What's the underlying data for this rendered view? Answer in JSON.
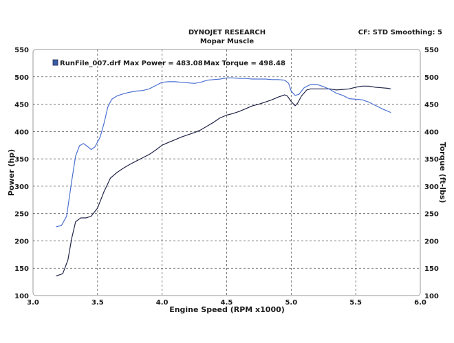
{
  "header": {
    "title": "DYNOJET RESEARCH",
    "subtitle": "Mopar Muscle",
    "settings": "CF: STD  Smoothing: 5"
  },
  "legend": {
    "run_text": "RunFile_007.drf Max Power = 483.08",
    "torque_text": "Max Torque = 498.48",
    "swatch_color": "#3a5ea8"
  },
  "chart_data": {
    "type": "line",
    "title": "DYNOJET RESEARCH",
    "subtitle": "Mopar Muscle",
    "xlabel": "Engine Speed (RPM x1000)",
    "ylabel_left": "Power (hp)",
    "ylabel_right": "Torque (ft-lbs)",
    "xlim": [
      3.0,
      6.0
    ],
    "ylim": [
      100,
      550
    ],
    "x_ticks": [
      "3.0",
      "3.5",
      "4.0",
      "4.5",
      "5.0",
      "5.5",
      "6.0"
    ],
    "y_ticks": [
      "100",
      "150",
      "200",
      "250",
      "300",
      "350",
      "400",
      "450",
      "500",
      "550"
    ],
    "grid": true,
    "series": [
      {
        "name": "Power",
        "color": "#1f2347",
        "points": [
          [
            3.18,
            136
          ],
          [
            3.23,
            140
          ],
          [
            3.27,
            165
          ],
          [
            3.3,
            205
          ],
          [
            3.33,
            235
          ],
          [
            3.37,
            242
          ],
          [
            3.41,
            242
          ],
          [
            3.45,
            245
          ],
          [
            3.5,
            260
          ],
          [
            3.55,
            290
          ],
          [
            3.6,
            315
          ],
          [
            3.65,
            325
          ],
          [
            3.7,
            333
          ],
          [
            3.75,
            340
          ],
          [
            3.8,
            346
          ],
          [
            3.85,
            352
          ],
          [
            3.9,
            358
          ],
          [
            3.95,
            366
          ],
          [
            4.0,
            375
          ],
          [
            4.05,
            380
          ],
          [
            4.1,
            385
          ],
          [
            4.15,
            390
          ],
          [
            4.2,
            394
          ],
          [
            4.25,
            398
          ],
          [
            4.3,
            403
          ],
          [
            4.35,
            410
          ],
          [
            4.4,
            417
          ],
          [
            4.45,
            425
          ],
          [
            4.5,
            430
          ],
          [
            4.55,
            433
          ],
          [
            4.6,
            437
          ],
          [
            4.65,
            442
          ],
          [
            4.7,
            447
          ],
          [
            4.75,
            450
          ],
          [
            4.8,
            454
          ],
          [
            4.85,
            458
          ],
          [
            4.9,
            463
          ],
          [
            4.95,
            467
          ],
          [
            4.97,
            465
          ],
          [
            5.0,
            455
          ],
          [
            5.03,
            447
          ],
          [
            5.05,
            452
          ],
          [
            5.08,
            465
          ],
          [
            5.12,
            476
          ],
          [
            5.15,
            478
          ],
          [
            5.2,
            478
          ],
          [
            5.25,
            478
          ],
          [
            5.3,
            478
          ],
          [
            5.35,
            476
          ],
          [
            5.4,
            477
          ],
          [
            5.45,
            478
          ],
          [
            5.5,
            481
          ],
          [
            5.55,
            483
          ],
          [
            5.6,
            483
          ],
          [
            5.65,
            481
          ],
          [
            5.7,
            480
          ],
          [
            5.75,
            479
          ],
          [
            5.77,
            478
          ]
        ]
      },
      {
        "name": "Torque",
        "color": "#4a6fd0",
        "points": [
          [
            3.18,
            226
          ],
          [
            3.22,
            228
          ],
          [
            3.26,
            245
          ],
          [
            3.3,
            310
          ],
          [
            3.33,
            355
          ],
          [
            3.36,
            374
          ],
          [
            3.39,
            378
          ],
          [
            3.42,
            373
          ],
          [
            3.45,
            367
          ],
          [
            3.48,
            372
          ],
          [
            3.52,
            390
          ],
          [
            3.55,
            415
          ],
          [
            3.58,
            445
          ],
          [
            3.61,
            459
          ],
          [
            3.65,
            465
          ],
          [
            3.7,
            469
          ],
          [
            3.75,
            472
          ],
          [
            3.8,
            474
          ],
          [
            3.85,
            475
          ],
          [
            3.9,
            478
          ],
          [
            3.95,
            484
          ],
          [
            4.0,
            490
          ],
          [
            4.05,
            491
          ],
          [
            4.1,
            491
          ],
          [
            4.15,
            490
          ],
          [
            4.2,
            489
          ],
          [
            4.25,
            488
          ],
          [
            4.3,
            490
          ],
          [
            4.35,
            494
          ],
          [
            4.4,
            495
          ],
          [
            4.45,
            496
          ],
          [
            4.5,
            498
          ],
          [
            4.55,
            498
          ],
          [
            4.6,
            497
          ],
          [
            4.65,
            497
          ],
          [
            4.7,
            496
          ],
          [
            4.75,
            496
          ],
          [
            4.8,
            496
          ],
          [
            4.85,
            495
          ],
          [
            4.9,
            495
          ],
          [
            4.95,
            494
          ],
          [
            4.98,
            488
          ],
          [
            5.0,
            474
          ],
          [
            5.03,
            466
          ],
          [
            5.06,
            468
          ],
          [
            5.1,
            480
          ],
          [
            5.15,
            486
          ],
          [
            5.2,
            486
          ],
          [
            5.25,
            482
          ],
          [
            5.3,
            477
          ],
          [
            5.35,
            470
          ],
          [
            5.4,
            466
          ],
          [
            5.45,
            460
          ],
          [
            5.5,
            459
          ],
          [
            5.55,
            458
          ],
          [
            5.6,
            454
          ],
          [
            5.65,
            448
          ],
          [
            5.7,
            442
          ],
          [
            5.75,
            437
          ],
          [
            5.77,
            435
          ]
        ]
      }
    ]
  }
}
